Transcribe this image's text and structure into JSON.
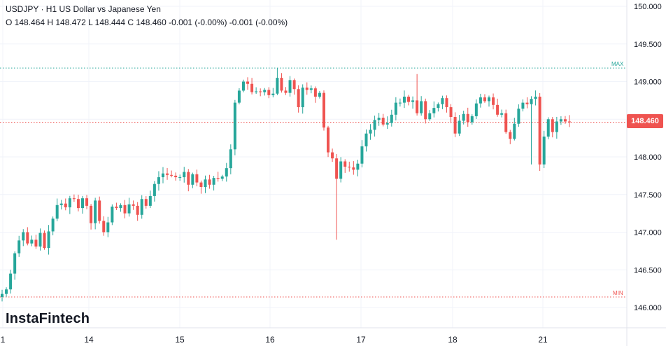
{
  "header": {
    "title": "USDJPY · H1 US Dollar vs Japanese Yen",
    "ohlc": "O 148.464 H 148.472 L 148.444 C 148.460 -0.001 (-0.00%) -0.001 (-0.00%)"
  },
  "logo": "InstaFintech",
  "price_tag": "148.460",
  "colors": {
    "up": "#26a69a",
    "down": "#ef5350",
    "max_line": "#26a69a",
    "min_line": "#ef5350",
    "grid": "#f0f3fa"
  },
  "chart_data": {
    "type": "candlestick",
    "symbol": "USDJPY",
    "timeframe": "H1",
    "y_range": [
      145.86,
      150.05
    ],
    "y_ticks": [
      "146.000",
      "146.500",
      "147.000",
      "147.500",
      "148.000",
      "148.500",
      "149.000",
      "149.500",
      "150.000"
    ],
    "x_ticks": [
      "1",
      "14",
      "15",
      "16",
      "17",
      "18",
      "21"
    ],
    "last_price": 148.46,
    "max_label": "MAX",
    "max_value": 149.18,
    "min_label": "MIN",
    "min_value": 146.14,
    "closes": [
      146.18,
      146.24,
      146.45,
      146.72,
      146.89,
      147.0,
      146.85,
      146.9,
      146.81,
      146.99,
      146.79,
      147.01,
      147.18,
      147.36,
      147.38,
      147.33,
      147.45,
      147.44,
      147.32,
      147.45,
      147.35,
      147.12,
      147.42,
      147.15,
      147.0,
      147.13,
      147.34,
      147.32,
      147.36,
      147.25,
      147.37,
      147.35,
      147.23,
      147.44,
      147.35,
      147.48,
      147.64,
      147.73,
      147.78,
      147.76,
      147.75,
      147.73,
      147.73,
      147.8,
      147.63,
      147.77,
      147.66,
      147.6,
      147.7,
      147.63,
      147.72,
      147.71,
      147.74,
      147.85,
      148.1,
      148.72,
      148.88,
      149.0,
      148.97,
      148.86,
      148.87,
      148.86,
      148.89,
      148.82,
      148.84,
      149.05,
      148.88,
      148.85,
      149.02,
      148.9,
      148.66,
      148.92,
      148.89,
      148.91,
      148.8,
      148.85,
      148.39,
      148.06,
      147.98,
      147.71,
      147.94,
      147.87,
      147.86,
      147.83,
      147.91,
      148.14,
      148.31,
      148.36,
      148.49,
      148.52,
      148.43,
      148.45,
      148.56,
      148.72,
      148.72,
      148.8,
      148.73,
      148.75,
      148.58,
      148.74,
      148.5,
      148.58,
      148.65,
      148.7,
      148.78,
      148.66,
      148.53,
      148.31,
      148.48,
      148.57,
      148.46,
      148.54,
      148.71,
      148.79,
      148.74,
      148.79,
      148.69,
      148.56,
      148.58,
      148.33,
      148.24,
      148.44,
      148.64,
      148.72,
      148.7,
      148.77,
      148.8,
      147.9,
      148.27,
      148.5,
      148.33,
      148.47,
      148.5,
      148.47,
      148.46
    ],
    "candle_x_start": 3,
    "candle_spacing": 6,
    "day_gaps_px": [
      [
        0,
        0
      ]
    ]
  }
}
